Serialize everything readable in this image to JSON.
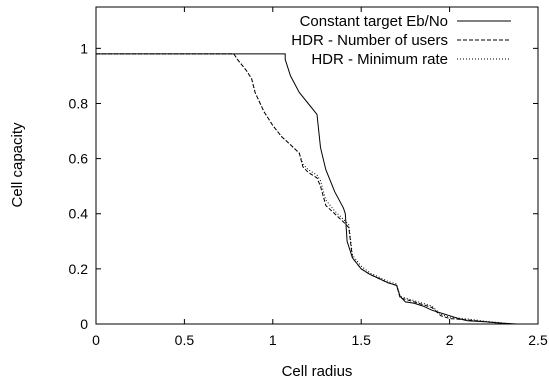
{
  "chart_data": {
    "type": "line",
    "title": "",
    "xlabel": "Cell radius",
    "ylabel": "Cell capacity",
    "xlim": [
      0,
      2.5
    ],
    "ylim": [
      0,
      1.15
    ],
    "xticks": [
      0,
      0.5,
      1,
      1.5,
      2,
      2.5
    ],
    "xtick_labels": [
      "0",
      "0.5",
      "1",
      "1.5",
      "2",
      "2.5"
    ],
    "yticks": [
      0,
      0.2,
      0.4,
      0.6,
      0.8,
      1
    ],
    "ytick_labels": [
      "0",
      "0.2",
      "0.4",
      "0.6",
      "0.8",
      "1"
    ],
    "grid": false,
    "legend_position": "top-right",
    "series": [
      {
        "name": "Constant target Eb/No",
        "style": "solid",
        "x": [
          0,
          1.07,
          1.07,
          1.1,
          1.15,
          1.2,
          1.25,
          1.27,
          1.3,
          1.35,
          1.4,
          1.41,
          1.42,
          1.45,
          1.5,
          1.55,
          1.6,
          1.65,
          1.7,
          1.72,
          1.75,
          1.8,
          1.85,
          1.9,
          1.95,
          2.0,
          2.05,
          2.1,
          2.2,
          2.3,
          2.38
        ],
        "y": [
          0.98,
          0.98,
          0.96,
          0.9,
          0.84,
          0.8,
          0.76,
          0.64,
          0.56,
          0.48,
          0.42,
          0.4,
          0.3,
          0.24,
          0.2,
          0.18,
          0.165,
          0.15,
          0.14,
          0.1,
          0.08,
          0.075,
          0.065,
          0.05,
          0.04,
          0.03,
          0.02,
          0.012,
          0.008,
          0.003,
          0.0
        ]
      },
      {
        "name": "HDR - Number of users",
        "style": "dashed",
        "x": [
          0,
          0.78,
          0.8,
          0.85,
          0.88,
          0.9,
          0.95,
          1.0,
          1.05,
          1.1,
          1.15,
          1.17,
          1.2,
          1.25,
          1.27,
          1.3,
          1.35,
          1.4,
          1.43,
          1.45,
          1.5,
          1.55,
          1.6,
          1.65,
          1.7,
          1.72,
          1.8,
          1.85,
          1.9,
          1.95,
          2.0,
          2.1,
          2.2,
          2.3,
          2.35
        ],
        "y": [
          0.98,
          0.98,
          0.96,
          0.92,
          0.89,
          0.84,
          0.77,
          0.72,
          0.68,
          0.65,
          0.62,
          0.57,
          0.55,
          0.53,
          0.5,
          0.43,
          0.4,
          0.37,
          0.35,
          0.24,
          0.2,
          0.18,
          0.165,
          0.15,
          0.14,
          0.095,
          0.08,
          0.07,
          0.06,
          0.03,
          0.02,
          0.015,
          0.008,
          0.003,
          0.0
        ]
      },
      {
        "name": "HDR - Minimum rate",
        "style": "dotted",
        "x": [
          0,
          0.78,
          0.8,
          0.85,
          0.88,
          0.9,
          0.95,
          1.0,
          1.05,
          1.1,
          1.15,
          1.17,
          1.2,
          1.25,
          1.27,
          1.3,
          1.35,
          1.4,
          1.43,
          1.45,
          1.5,
          1.55,
          1.6,
          1.65,
          1.7,
          1.72,
          1.8,
          1.85,
          1.9,
          1.95,
          2.0,
          2.1,
          2.2,
          2.3,
          2.35
        ],
        "y": [
          0.98,
          0.98,
          0.96,
          0.92,
          0.89,
          0.84,
          0.77,
          0.72,
          0.68,
          0.65,
          0.62,
          0.58,
          0.56,
          0.54,
          0.52,
          0.45,
          0.41,
          0.38,
          0.36,
          0.25,
          0.21,
          0.185,
          0.17,
          0.155,
          0.145,
          0.1,
          0.085,
          0.075,
          0.065,
          0.035,
          0.025,
          0.018,
          0.01,
          0.004,
          0.0
        ]
      }
    ]
  }
}
